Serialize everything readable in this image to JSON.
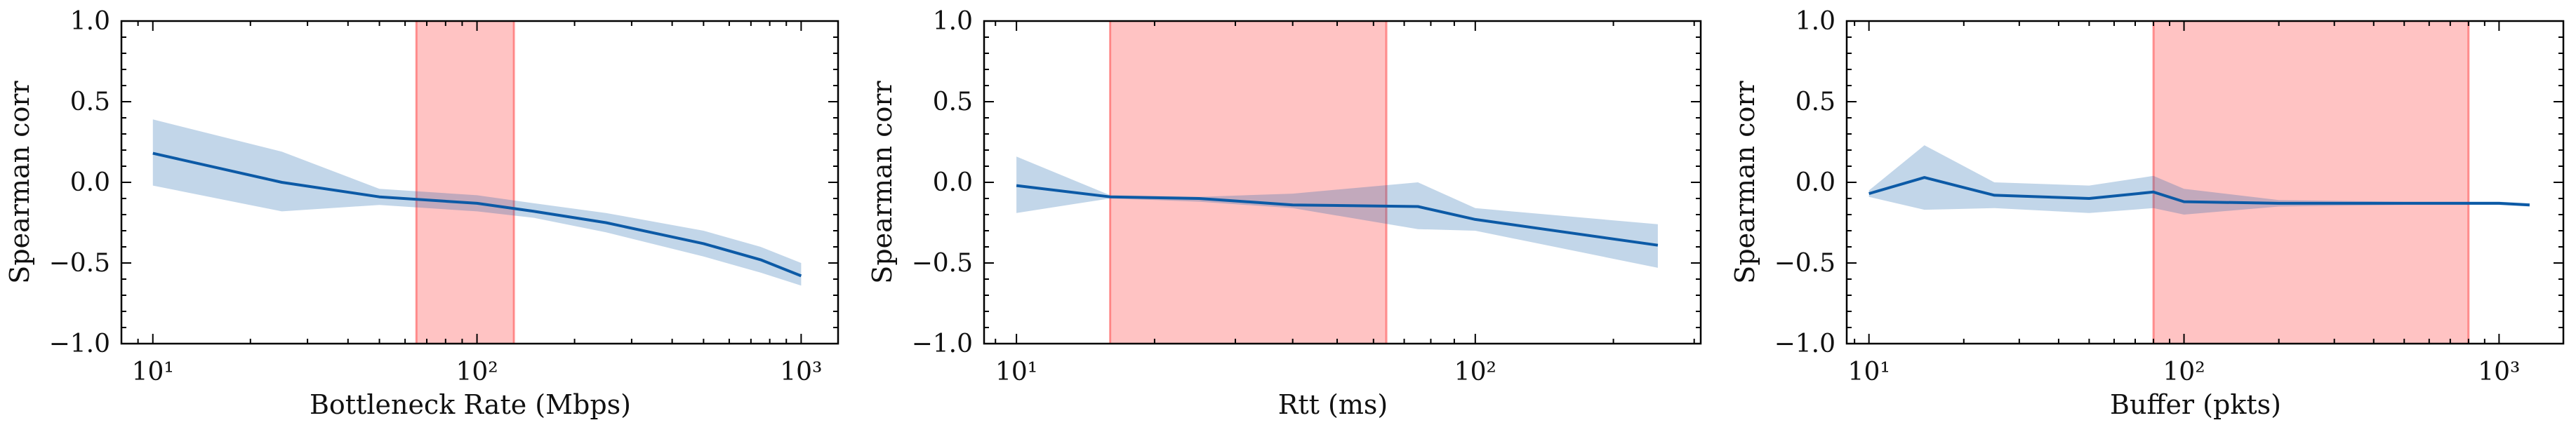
{
  "chart_data": [
    {
      "type": "line",
      "xlabel": "Bottleneck Rate (Mbps)",
      "ylabel": "Spearman corr",
      "xscale": "log",
      "xlim": [
        8,
        1300
      ],
      "ylim": [
        -1.0,
        1.0
      ],
      "yticks": [
        -1.0,
        -0.5,
        0.0,
        0.5,
        1.0
      ],
      "ytick_labels": [
        "−1.0",
        "−0.5",
        "0.0",
        "0.5",
        "1.0"
      ],
      "xticks": [
        10,
        100,
        1000
      ],
      "xtick_labels": [
        "10¹",
        "10²",
        "10³"
      ],
      "highlight_range": [
        65,
        130
      ],
      "series": [
        {
          "x": [
            10,
            25,
            50,
            100,
            150,
            250,
            500,
            750,
            1000
          ],
          "y": [
            0.18,
            0.0,
            -0.09,
            -0.13,
            -0.18,
            -0.25,
            -0.38,
            -0.48,
            -0.58
          ],
          "lower": [
            -0.02,
            -0.18,
            -0.14,
            -0.18,
            -0.22,
            -0.31,
            -0.46,
            -0.56,
            -0.64
          ],
          "upper": [
            0.39,
            0.19,
            -0.04,
            -0.08,
            -0.13,
            -0.19,
            -0.3,
            -0.4,
            -0.5
          ]
        }
      ]
    },
    {
      "type": "line",
      "xlabel": "Rtt (ms)",
      "ylabel": "Spearman corr",
      "xscale": "log",
      "xlim": [
        8.5,
        310
      ],
      "ylim": [
        -1.0,
        1.0
      ],
      "yticks": [
        -1.0,
        -0.5,
        0.0,
        0.5,
        1.0
      ],
      "ytick_labels": [
        "−1.0",
        "−0.5",
        "0.0",
        "0.5",
        "1.0"
      ],
      "xticks": [
        10,
        100
      ],
      "xtick_labels": [
        "10¹",
        "10²"
      ],
      "highlight_range": [
        16,
        64
      ],
      "series": [
        {
          "x": [
            10,
            16,
            25,
            40,
            75,
            100,
            250
          ],
          "y": [
            -0.02,
            -0.09,
            -0.1,
            -0.14,
            -0.15,
            -0.23,
            -0.39
          ],
          "lower": [
            -0.19,
            -0.1,
            -0.12,
            -0.16,
            -0.29,
            -0.3,
            -0.53
          ],
          "upper": [
            0.16,
            -0.08,
            -0.09,
            -0.07,
            0.0,
            -0.16,
            -0.26
          ]
        }
      ]
    },
    {
      "type": "line",
      "xlabel": "Buffer (pkts)",
      "ylabel": "Spearman corr",
      "xscale": "log",
      "xlim": [
        8.5,
        1600
      ],
      "ylim": [
        -1.0,
        1.0
      ],
      "yticks": [
        -1.0,
        -0.5,
        0.0,
        0.5,
        1.0
      ],
      "ytick_labels": [
        "−1.0",
        "−0.5",
        "0.0",
        "0.5",
        "1.0"
      ],
      "xticks": [
        10,
        100,
        1000
      ],
      "xtick_labels": [
        "10¹",
        "10²",
        "10³"
      ],
      "highlight_range": [
        80,
        800
      ],
      "series": [
        {
          "x": [
            10,
            15,
            25,
            50,
            80,
            100,
            200,
            500,
            1000,
            1250
          ],
          "y": [
            -0.07,
            0.03,
            -0.08,
            -0.1,
            -0.06,
            -0.12,
            -0.13,
            -0.13,
            -0.13,
            -0.14
          ],
          "lower": [
            -0.09,
            -0.17,
            -0.16,
            -0.19,
            -0.16,
            -0.2,
            -0.15,
            -0.14,
            -0.14,
            -0.15
          ],
          "upper": [
            -0.05,
            0.23,
            0.0,
            -0.02,
            0.04,
            -0.04,
            -0.11,
            -0.12,
            -0.12,
            -0.13
          ]
        }
      ]
    }
  ]
}
